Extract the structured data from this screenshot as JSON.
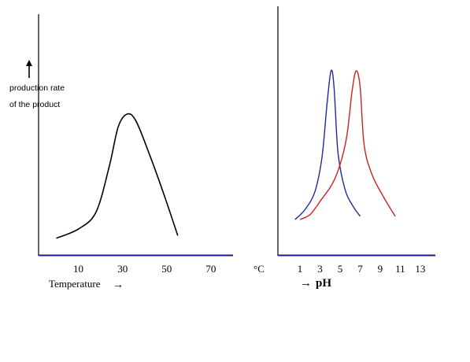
{
  "chart_data": [
    {
      "type": "line",
      "ylabel_line1": "production rate",
      "ylabel_line2": "of the product",
      "xlabel": "Temperature",
      "x_unit": "°C",
      "x_ticks": [
        10,
        30,
        50,
        70
      ],
      "xlim": [
        -8,
        80
      ],
      "grid": false,
      "series": [
        {
          "color": "#000000",
          "points": [
            [
              0,
              0.05
            ],
            [
              10,
              0.12
            ],
            [
              18,
              0.25
            ],
            [
              24,
              0.6
            ],
            [
              28,
              0.9
            ],
            [
              32,
              1.0
            ],
            [
              36,
              0.95
            ],
            [
              42,
              0.7
            ],
            [
              48,
              0.42
            ],
            [
              55,
              0.07
            ]
          ]
        }
      ]
    },
    {
      "type": "line",
      "xlabel": "pH",
      "x_ticks": [
        1,
        3,
        5,
        7,
        9,
        11,
        13
      ],
      "xlim": [
        -1.2,
        14.5
      ],
      "grid": false,
      "series": [
        {
          "color": "#1f2a9a",
          "points": [
            [
              0.5,
              0.1
            ],
            [
              1.5,
              0.16
            ],
            [
              2.5,
              0.27
            ],
            [
              3.2,
              0.48
            ],
            [
              3.7,
              0.8
            ],
            [
              4.1,
              1.0
            ],
            [
              4.4,
              0.9
            ],
            [
              4.8,
              0.5
            ],
            [
              5.5,
              0.28
            ],
            [
              6.3,
              0.18
            ],
            [
              7.0,
              0.12
            ]
          ]
        },
        {
          "color": "#cc2222",
          "points": [
            [
              1.0,
              0.1
            ],
            [
              2.0,
              0.13
            ],
            [
              3.0,
              0.21
            ],
            [
              4.5,
              0.35
            ],
            [
              5.6,
              0.58
            ],
            [
              6.2,
              0.88
            ],
            [
              6.6,
              1.0
            ],
            [
              7.0,
              0.9
            ],
            [
              7.4,
              0.55
            ],
            [
              8.2,
              0.37
            ],
            [
              9.3,
              0.24
            ],
            [
              10.5,
              0.12
            ]
          ]
        }
      ]
    }
  ]
}
